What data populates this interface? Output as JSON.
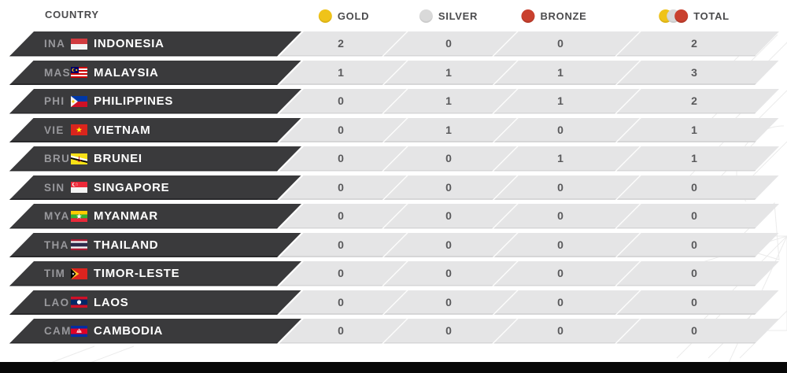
{
  "header": {
    "country_label": "COUNTRY",
    "columns": [
      {
        "label": "GOLD",
        "icon": "gold-medal-icon",
        "color": "#efc319"
      },
      {
        "label": "SILVER",
        "icon": "silver-medal-icon",
        "color": "#d9d9d9"
      },
      {
        "label": "BRONZE",
        "icon": "bronze-medal-icon",
        "color": "#c9402e"
      },
      {
        "label": "TOTAL",
        "icon": "total-medals-icon",
        "color": "#efc319 #d9d9d9 #c9402e"
      }
    ]
  },
  "rows": [
    {
      "code": "INA",
      "country": "INDONESIA",
      "flag": "indonesia-flag",
      "gold": "2",
      "silver": "0",
      "bronze": "0",
      "total": "2"
    },
    {
      "code": "MAS",
      "country": "MALAYSIA",
      "flag": "malaysia-flag",
      "gold": "1",
      "silver": "1",
      "bronze": "1",
      "total": "3"
    },
    {
      "code": "PHI",
      "country": "PHILIPPINES",
      "flag": "philippines-flag",
      "gold": "0",
      "silver": "1",
      "bronze": "1",
      "total": "2"
    },
    {
      "code": "VIE",
      "country": "VIETNAM",
      "flag": "vietnam-flag",
      "gold": "0",
      "silver": "1",
      "bronze": "0",
      "total": "1"
    },
    {
      "code": "BRU",
      "country": "BRUNEI",
      "flag": "brunei-flag",
      "gold": "0",
      "silver": "0",
      "bronze": "1",
      "total": "1"
    },
    {
      "code": "SIN",
      "country": "SINGAPORE",
      "flag": "singapore-flag",
      "gold": "0",
      "silver": "0",
      "bronze": "0",
      "total": "0"
    },
    {
      "code": "MYA",
      "country": "MYANMAR",
      "flag": "myanmar-flag",
      "gold": "0",
      "silver": "0",
      "bronze": "0",
      "total": "0"
    },
    {
      "code": "THA",
      "country": "THAILAND",
      "flag": "thailand-flag",
      "gold": "0",
      "silver": "0",
      "bronze": "0",
      "total": "0"
    },
    {
      "code": "TIM",
      "country": "TIMOR-LESTE",
      "flag": "timor-leste-flag",
      "gold": "0",
      "silver": "0",
      "bronze": "0",
      "total": "0"
    },
    {
      "code": "LAO",
      "country": "LAOS",
      "flag": "laos-flag",
      "gold": "0",
      "silver": "0",
      "bronze": "0",
      "total": "0"
    },
    {
      "code": "CAM",
      "country": "CAMBODIA",
      "flag": "cambodia-flag",
      "gold": "0",
      "silver": "0",
      "bronze": "0",
      "total": "0"
    }
  ],
  "colors": {
    "dark_row": "#3a3a3c",
    "stats_band": "#e5e5e6",
    "header_text": "#4b4b4d",
    "code_text": "#98989c",
    "number_text": "#59595b",
    "bottom_bar": "#070707"
  }
}
